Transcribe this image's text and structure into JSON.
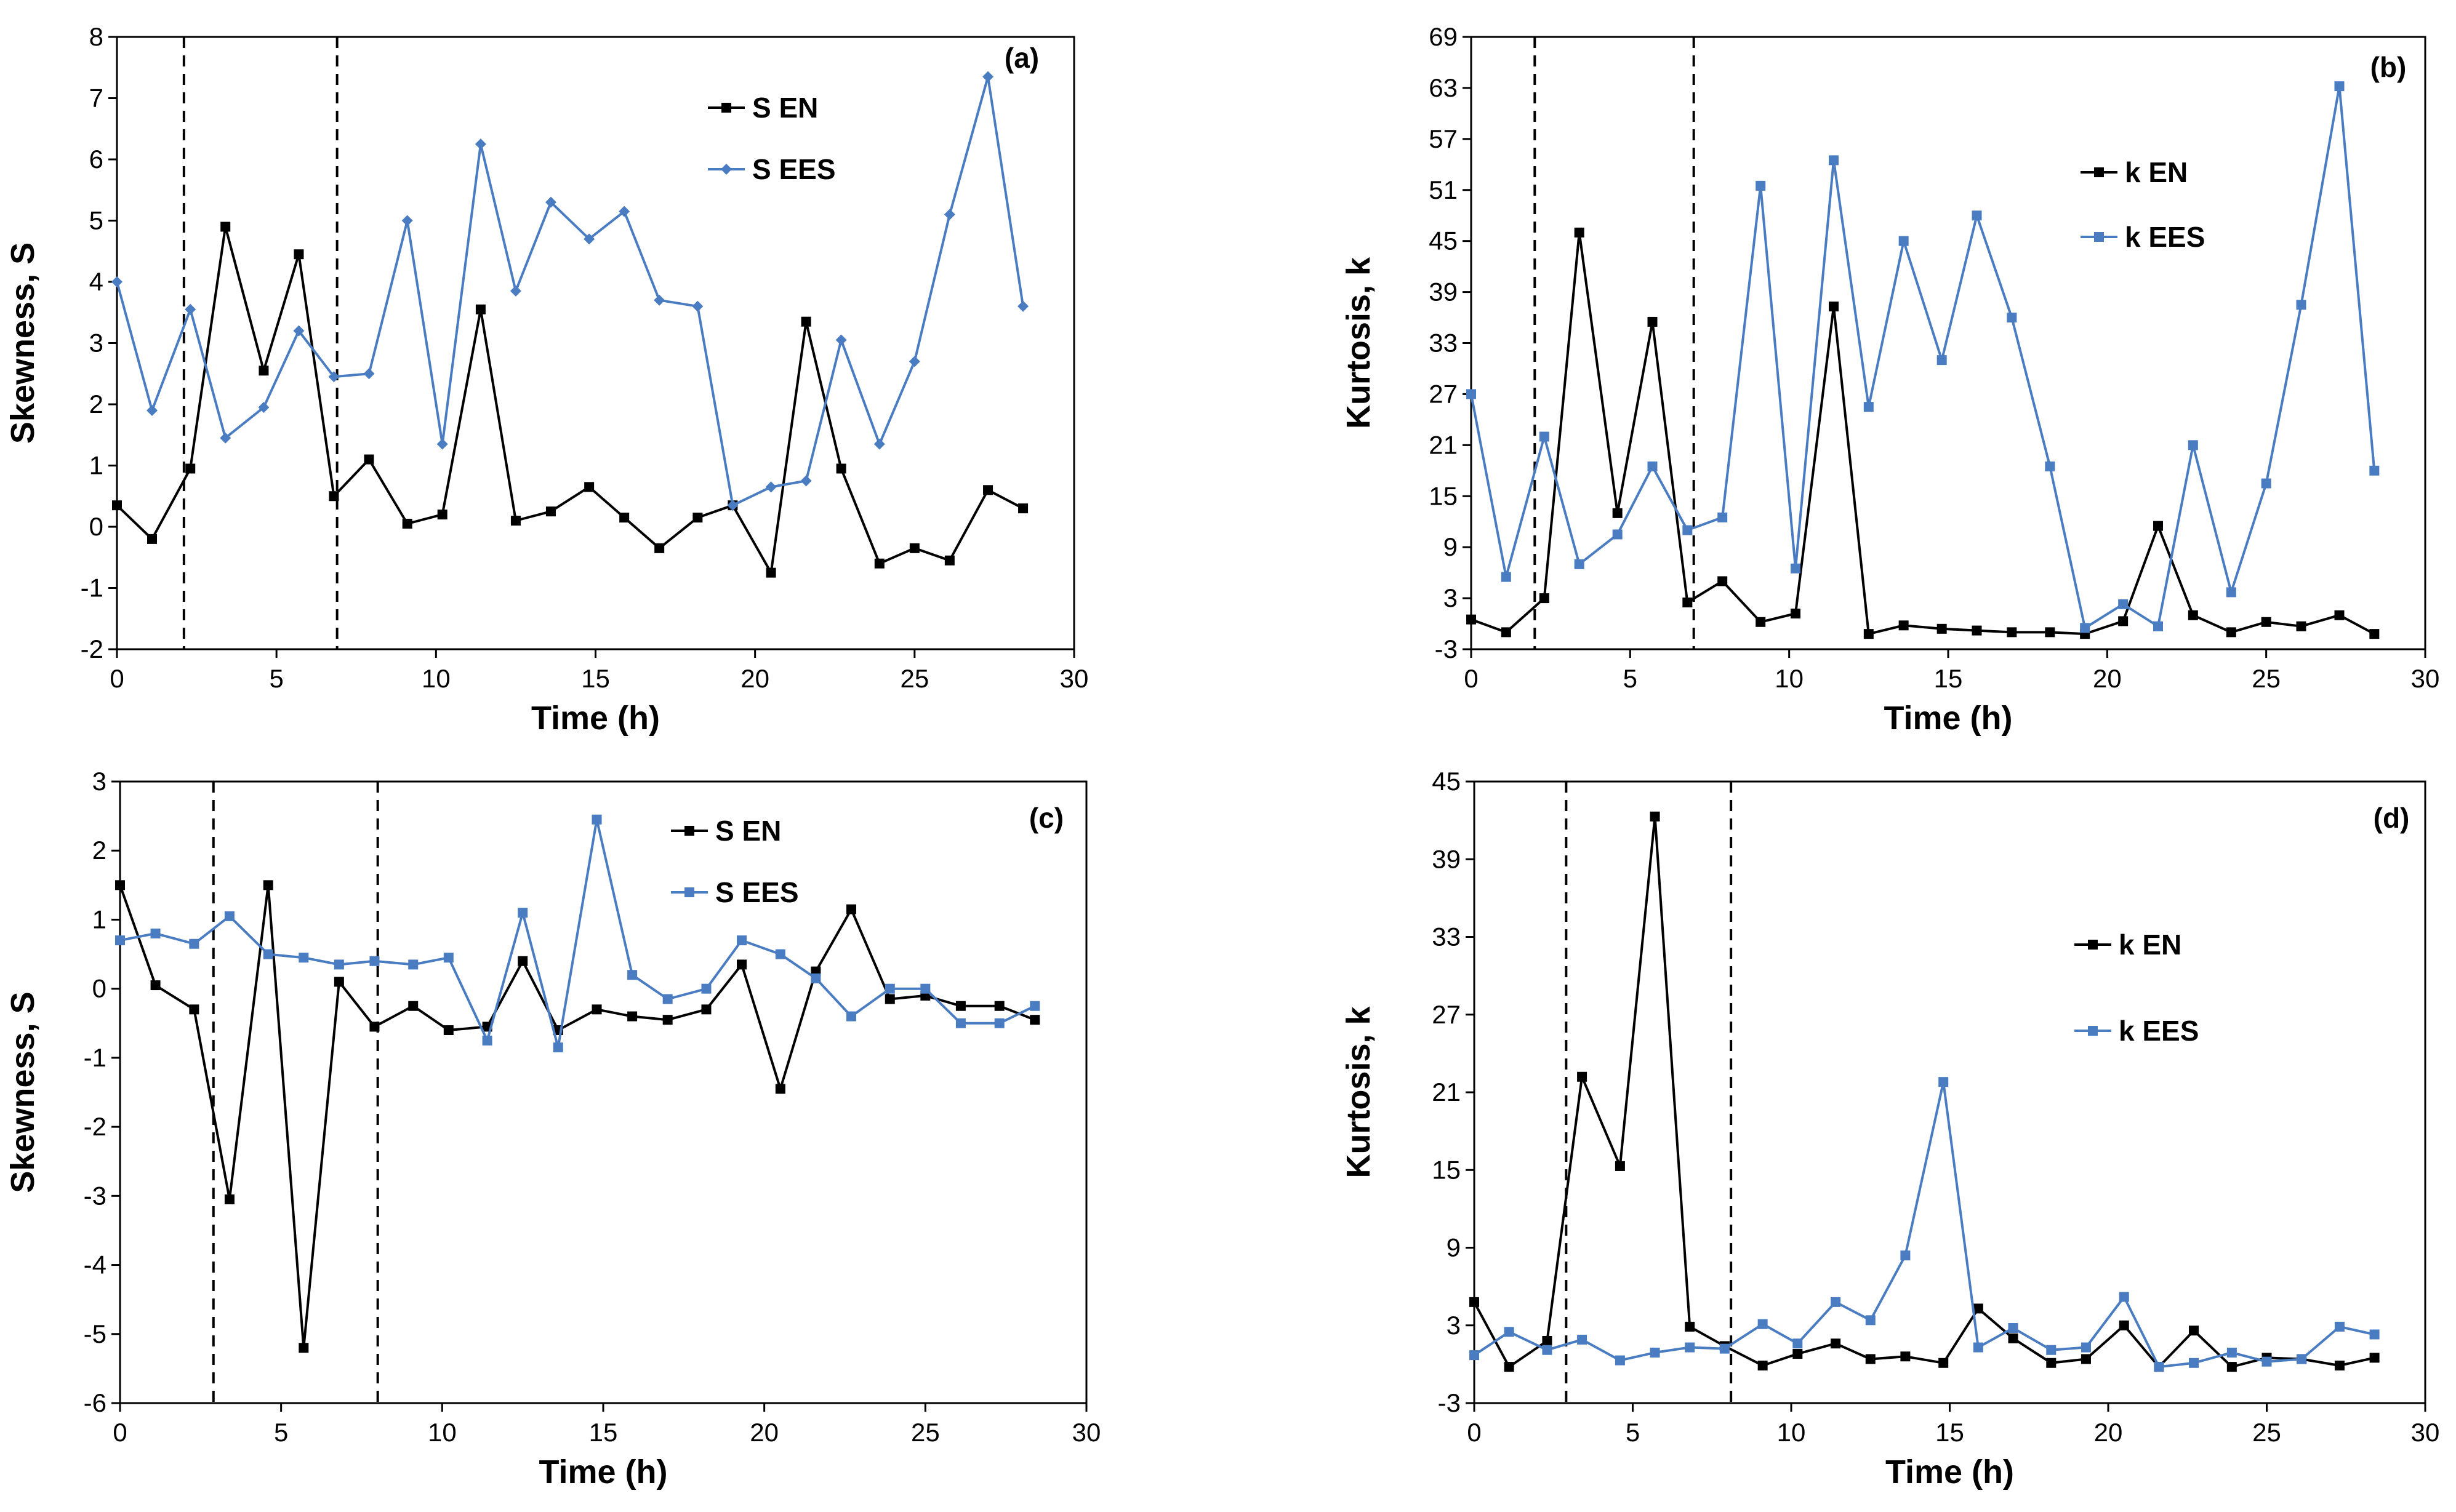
{
  "colors": {
    "en": "#000000",
    "ees": "#4a7cc2",
    "axis": "#000000"
  },
  "chart_data": [
    {
      "type": "line",
      "panel_label": "(a)",
      "xlabel": "Time (h)",
      "ylabel": "Skewness, S",
      "xlim": [
        0,
        30
      ],
      "ylim": [
        -2,
        8
      ],
      "xticks": [
        0,
        5,
        10,
        15,
        20,
        25,
        30
      ],
      "yticks": [
        -2,
        -1,
        0,
        1,
        2,
        3,
        4,
        5,
        6,
        7,
        8
      ],
      "vlines": [
        2.1,
        6.9
      ],
      "legend_position": "top-center",
      "series": [
        {
          "name": "S EN",
          "marker": "square",
          "color": "#000000",
          "x": [
            0,
            1.1,
            2.3,
            3.4,
            4.6,
            5.7,
            6.8,
            7.9,
            9.1,
            10.2,
            11.4,
            12.5,
            13.6,
            14.8,
            15.9,
            17.0,
            18.2,
            19.3,
            20.5,
            21.6,
            22.7,
            23.9,
            25.0,
            26.1,
            27.3,
            28.4
          ],
          "y": [
            0.35,
            -0.2,
            0.95,
            4.9,
            2.55,
            4.45,
            0.5,
            1.1,
            0.05,
            0.2,
            3.55,
            0.1,
            0.25,
            0.65,
            0.15,
            -0.35,
            0.15,
            0.35,
            -0.75,
            3.35,
            0.95,
            -0.6,
            -0.35,
            -0.55,
            0.6,
            0.3
          ]
        },
        {
          "name": "S EES",
          "marker": "diamond",
          "color": "#4a7cc2",
          "x": [
            0,
            1.1,
            2.3,
            3.4,
            4.6,
            5.7,
            6.8,
            7.9,
            9.1,
            10.2,
            11.4,
            12.5,
            13.6,
            14.8,
            15.9,
            17.0,
            18.2,
            19.3,
            20.5,
            21.6,
            22.7,
            23.9,
            25.0,
            26.1,
            27.3,
            28.4
          ],
          "y": [
            4.0,
            1.9,
            3.55,
            1.45,
            1.95,
            3.2,
            2.45,
            2.5,
            5.0,
            1.35,
            6.25,
            3.85,
            5.3,
            4.7,
            5.15,
            3.7,
            3.6,
            0.35,
            0.65,
            0.75,
            3.05,
            1.35,
            2.7,
            5.1,
            7.35,
            3.6
          ]
        }
      ]
    },
    {
      "type": "line",
      "panel_label": "(b)",
      "xlabel": "Time (h)",
      "ylabel": "Kurtosis, k",
      "xlim": [
        0,
        30
      ],
      "ylim": [
        -3,
        69
      ],
      "xticks": [
        0,
        5,
        10,
        15,
        20,
        25,
        30
      ],
      "yticks": [
        -3,
        3,
        9,
        15,
        21,
        27,
        33,
        39,
        45,
        51,
        57,
        63,
        69
      ],
      "vlines": [
        2.0,
        7.0
      ],
      "legend_position": "center-right",
      "series": [
        {
          "name": "k EN",
          "marker": "square",
          "color": "#000000",
          "x": [
            0,
            1.1,
            2.3,
            3.4,
            4.6,
            5.7,
            6.8,
            7.9,
            9.1,
            10.2,
            11.4,
            12.5,
            13.6,
            14.8,
            15.9,
            17.0,
            18.2,
            19.3,
            20.5,
            21.6,
            22.7,
            23.9,
            25.0,
            26.1,
            27.3,
            28.4
          ],
          "y": [
            0.5,
            -1.0,
            3.0,
            46.0,
            13.0,
            35.5,
            2.5,
            5.0,
            0.2,
            1.2,
            37.3,
            -1.2,
            -0.2,
            -0.6,
            -0.8,
            -1.0,
            -1.0,
            -1.2,
            0.3,
            11.5,
            1.0,
            -1.0,
            0.2,
            -0.3,
            1.0,
            -1.2
          ]
        },
        {
          "name": "k EES",
          "marker": "square",
          "color": "#4a7cc2",
          "x": [
            0,
            1.1,
            2.3,
            3.4,
            4.6,
            5.7,
            6.8,
            7.9,
            9.1,
            10.2,
            11.4,
            12.5,
            13.6,
            14.8,
            15.9,
            17.0,
            18.2,
            19.3,
            20.5,
            21.6,
            22.7,
            23.9,
            25.0,
            26.1,
            27.3,
            28.4
          ],
          "y": [
            27.0,
            5.5,
            22.0,
            7.0,
            10.5,
            18.5,
            11.0,
            12.5,
            51.5,
            6.5,
            54.5,
            25.5,
            45.0,
            31.0,
            48.0,
            36.0,
            18.5,
            -0.5,
            2.3,
            -0.3,
            21.0,
            3.7,
            16.5,
            37.5,
            63.2,
            18.0
          ]
        }
      ]
    },
    {
      "type": "line",
      "panel_label": "(c)",
      "xlabel": "Time (h)",
      "ylabel": "Skewness, S",
      "xlim": [
        0,
        30
      ],
      "ylim": [
        -6,
        3
      ],
      "xticks": [
        0,
        5,
        10,
        15,
        20,
        25,
        30
      ],
      "yticks": [
        -6,
        -5,
        -4,
        -3,
        -2,
        -1,
        0,
        1,
        2,
        3
      ],
      "vlines": [
        2.9,
        8.0
      ],
      "legend_position": "top-center",
      "series": [
        {
          "name": "S EN",
          "marker": "square",
          "color": "#000000",
          "x": [
            0,
            1.1,
            2.3,
            3.4,
            4.6,
            5.7,
            6.8,
            7.9,
            9.1,
            10.2,
            11.4,
            12.5,
            13.6,
            14.8,
            15.9,
            17.0,
            18.2,
            19.3,
            20.5,
            21.6,
            22.7,
            23.9,
            25.0,
            26.1,
            27.3,
            28.4
          ],
          "y": [
            1.5,
            0.05,
            -0.3,
            -3.05,
            1.5,
            -5.2,
            0.1,
            -0.55,
            -0.25,
            -0.6,
            -0.55,
            0.4,
            -0.6,
            -0.3,
            -0.4,
            -0.45,
            -0.3,
            0.35,
            -1.45,
            0.25,
            1.15,
            -0.15,
            -0.1,
            -0.25,
            -0.25,
            -0.45
          ]
        },
        {
          "name": "S EES",
          "marker": "square",
          "color": "#4a7cc2",
          "x": [
            0,
            1.1,
            2.3,
            3.4,
            4.6,
            5.7,
            6.8,
            7.9,
            9.1,
            10.2,
            11.4,
            12.5,
            13.6,
            14.8,
            15.9,
            17.0,
            18.2,
            19.3,
            20.5,
            21.6,
            22.7,
            23.9,
            25.0,
            26.1,
            27.3,
            28.4
          ],
          "y": [
            0.7,
            0.8,
            0.65,
            1.05,
            0.5,
            0.45,
            0.35,
            0.4,
            0.35,
            0.45,
            -0.75,
            1.1,
            -0.85,
            2.45,
            0.2,
            -0.15,
            0.0,
            0.7,
            0.5,
            0.15,
            -0.4,
            0.0,
            0.0,
            -0.5,
            -0.5,
            -0.25
          ]
        }
      ]
    },
    {
      "type": "line",
      "panel_label": "(d)",
      "xlabel": "Time (h)",
      "ylabel": "Kurtosis, k",
      "xlim": [
        0,
        30
      ],
      "ylim": [
        -3,
        45
      ],
      "xticks": [
        0,
        5,
        10,
        15,
        20,
        25,
        30
      ],
      "yticks": [
        -3,
        3,
        9,
        15,
        21,
        27,
        33,
        39,
        45
      ],
      "vlines": [
        2.9,
        8.1
      ],
      "legend_position": "top-center",
      "series": [
        {
          "name": "k EN",
          "marker": "square",
          "color": "#000000",
          "x": [
            0,
            1.1,
            2.3,
            3.4,
            4.6,
            5.7,
            6.8,
            7.9,
            9.1,
            10.2,
            11.4,
            12.5,
            13.6,
            14.8,
            15.9,
            17.0,
            18.2,
            19.3,
            20.5,
            21.6,
            22.7,
            23.9,
            25.0,
            26.1,
            27.3,
            28.4
          ],
          "y": [
            4.8,
            -0.2,
            1.8,
            22.2,
            15.3,
            42.3,
            2.9,
            1.4,
            -0.1,
            0.8,
            1.6,
            0.4,
            0.6,
            0.1,
            4.3,
            2.0,
            0.1,
            0.4,
            3.0,
            -0.2,
            2.6,
            -0.2,
            0.5,
            0.4,
            -0.1,
            0.5
          ]
        },
        {
          "name": "k EES",
          "marker": "square",
          "color": "#4a7cc2",
          "x": [
            0,
            1.1,
            2.3,
            3.4,
            4.6,
            5.7,
            6.8,
            7.9,
            9.1,
            10.2,
            11.4,
            12.5,
            13.6,
            14.8,
            15.9,
            17.0,
            18.2,
            19.3,
            20.5,
            21.6,
            22.7,
            23.9,
            25.0,
            26.1,
            27.3,
            28.4
          ],
          "y": [
            0.7,
            2.5,
            1.1,
            1.9,
            0.3,
            0.9,
            1.3,
            1.2,
            3.1,
            1.6,
            4.8,
            3.4,
            8.4,
            21.8,
            1.3,
            2.8,
            1.1,
            1.3,
            5.2,
            -0.2,
            0.1,
            0.9,
            0.2,
            0.4,
            2.9,
            2.3
          ]
        }
      ]
    }
  ]
}
